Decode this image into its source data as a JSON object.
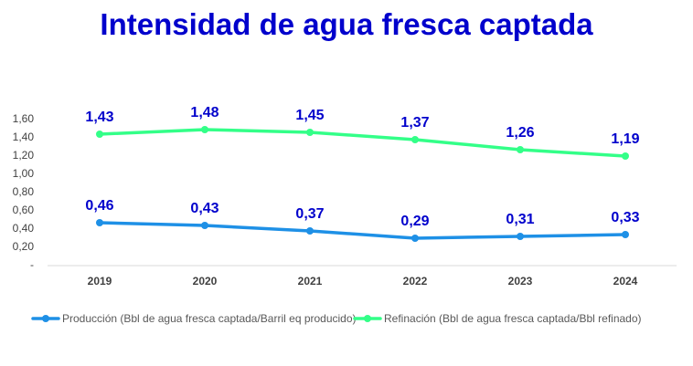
{
  "chart_data": {
    "type": "line",
    "title": "Intensidad de agua fresca captada",
    "categories": [
      "2019",
      "2020",
      "2021",
      "2022",
      "2023",
      "2024"
    ],
    "ytick_labels": [
      "-",
      "0,20",
      "0,40",
      "0,60",
      "0,80",
      "1,00",
      "1,20",
      "1,40",
      "1,60"
    ],
    "ylim": [
      0,
      1.6
    ],
    "grid": false,
    "legend_position": "bottom",
    "series": [
      {
        "name": "Producción (Bbl de agua fresca captada/Barril eq producido)",
        "color": "#1e90e6",
        "values": [
          0.46,
          0.43,
          0.37,
          0.29,
          0.31,
          0.33
        ],
        "labels": [
          "0,46",
          "0,43",
          "0,37",
          "0,29",
          "0,31",
          "0,33"
        ]
      },
      {
        "name": "Refinación (Bbl de agua fresca captada/Bbl refinado)",
        "color": "#33ff88",
        "values": [
          1.43,
          1.48,
          1.45,
          1.37,
          1.26,
          1.19
        ],
        "labels": [
          "1,43",
          "1,48",
          "1,45",
          "1,37",
          "1,26",
          "1,19"
        ]
      }
    ],
    "label_color": "#0000cc"
  }
}
